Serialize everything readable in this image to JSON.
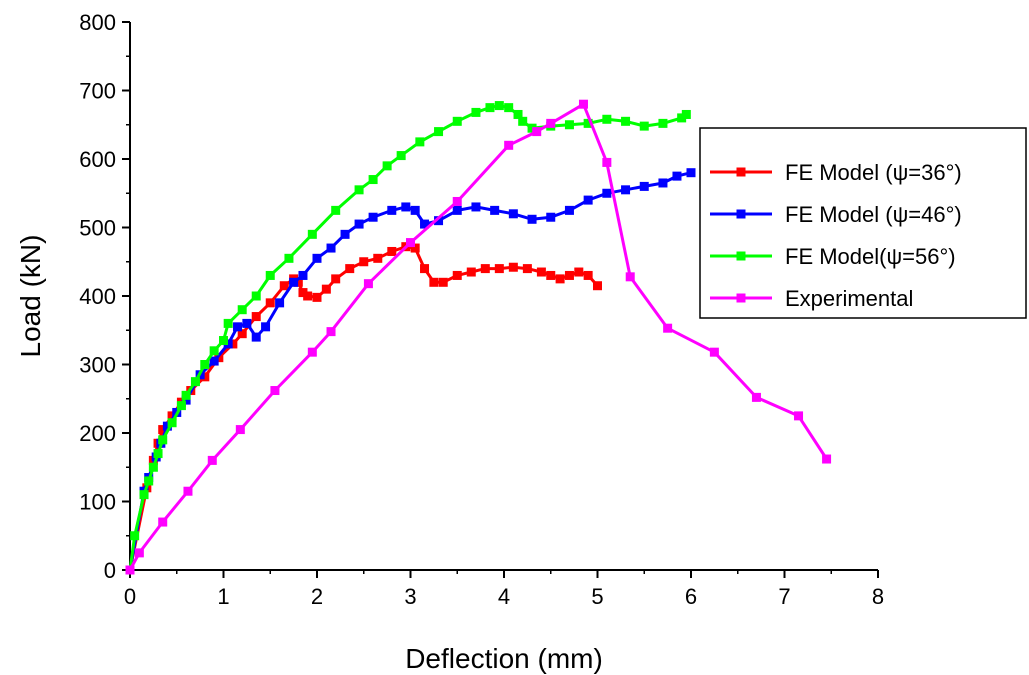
{
  "chart_data": {
    "type": "line",
    "title": "",
    "xlabel": "Deflection (mm)",
    "ylabel": "Load (kN)",
    "xlim": [
      0,
      8
    ],
    "ylim": [
      0,
      800
    ],
    "x_ticks": [
      "0",
      "1",
      "2",
      "3",
      "4",
      "5",
      "6",
      "7",
      "8"
    ],
    "y_ticks": [
      "0",
      "100",
      "200",
      "300",
      "400",
      "500",
      "600",
      "700",
      "800"
    ],
    "grid": false,
    "legend_position": "right",
    "series": [
      {
        "name": "FE Model (ψ=36°)",
        "color": "#ff0000",
        "marker": "square",
        "x": [
          0,
          0.18,
          0.25,
          0.3,
          0.35,
          0.45,
          0.55,
          0.65,
          0.8,
          0.95,
          1.1,
          1.2,
          1.35,
          1.5,
          1.65,
          1.75,
          1.8,
          1.85,
          1.9,
          2.0,
          2.1,
          2.2,
          2.35,
          2.5,
          2.65,
          2.8,
          2.95,
          3.05,
          3.15,
          3.25,
          3.35,
          3.5,
          3.65,
          3.8,
          3.95,
          4.1,
          4.25,
          4.4,
          4.5,
          4.6,
          4.7,
          4.8,
          4.9,
          5.0
        ],
        "y": [
          0,
          120,
          160,
          185,
          205,
          225,
          245,
          262,
          282,
          310,
          330,
          345,
          370,
          390,
          415,
          425,
          420,
          405,
          400,
          398,
          410,
          425,
          440,
          450,
          455,
          465,
          472,
          470,
          440,
          420,
          420,
          430,
          435,
          440,
          440,
          442,
          440,
          435,
          430,
          425,
          430,
          435,
          430,
          415
        ]
      },
      {
        "name": "FE Model (ψ=46°)",
        "color": "#0000ff",
        "marker": "square",
        "x": [
          0,
          0.15,
          0.2,
          0.28,
          0.33,
          0.4,
          0.5,
          0.6,
          0.75,
          0.9,
          1.05,
          1.15,
          1.25,
          1.35,
          1.45,
          1.6,
          1.75,
          1.85,
          2.0,
          2.15,
          2.3,
          2.45,
          2.6,
          2.8,
          2.95,
          3.05,
          3.15,
          3.3,
          3.5,
          3.7,
          3.9,
          4.1,
          4.3,
          4.5,
          4.7,
          4.9,
          5.1,
          5.3,
          5.5,
          5.7,
          5.85,
          6.0
        ],
        "y": [
          0,
          115,
          135,
          165,
          185,
          210,
          230,
          248,
          285,
          305,
          330,
          355,
          360,
          340,
          355,
          390,
          420,
          430,
          455,
          470,
          490,
          505,
          515,
          525,
          530,
          525,
          505,
          510,
          525,
          530,
          525,
          520,
          512,
          515,
          525,
          540,
          550,
          555,
          560,
          565,
          575,
          580
        ]
      },
      {
        "name": "FE Model(ψ=56°)",
        "color": "#00ff00",
        "marker": "square",
        "x": [
          0,
          0.05,
          0.15,
          0.2,
          0.25,
          0.3,
          0.35,
          0.45,
          0.55,
          0.6,
          0.7,
          0.8,
          0.9,
          1.0,
          1.05,
          1.2,
          1.35,
          1.5,
          1.7,
          1.95,
          2.2,
          2.45,
          2.6,
          2.75,
          2.9,
          3.1,
          3.3,
          3.5,
          3.7,
          3.85,
          3.95,
          4.05,
          4.15,
          4.2,
          4.3,
          4.5,
          4.7,
          4.9,
          5.1,
          5.3,
          5.5,
          5.7,
          5.9,
          5.95
        ],
        "y": [
          0,
          50,
          110,
          130,
          150,
          170,
          190,
          215,
          240,
          255,
          275,
          300,
          320,
          335,
          360,
          380,
          400,
          430,
          455,
          490,
          525,
          555,
          570,
          590,
          605,
          625,
          640,
          655,
          668,
          675,
          678,
          675,
          665,
          655,
          645,
          648,
          650,
          652,
          658,
          655,
          648,
          652,
          660,
          665
        ]
      },
      {
        "name": "Experimental",
        "color": "#ff00ff",
        "marker": "square",
        "x": [
          0,
          0.1,
          0.35,
          0.62,
          0.88,
          1.18,
          1.55,
          1.95,
          2.15,
          2.55,
          3.0,
          3.5,
          4.05,
          4.35,
          4.5,
          4.85,
          5.1,
          5.35,
          5.75,
          6.25,
          6.7,
          7.15,
          7.45
        ],
        "y": [
          0,
          25,
          70,
          115,
          160,
          205,
          262,
          318,
          348,
          418,
          478,
          538,
          620,
          640,
          652,
          680,
          595,
          428,
          353,
          318,
          252,
          225,
          162
        ]
      }
    ]
  }
}
